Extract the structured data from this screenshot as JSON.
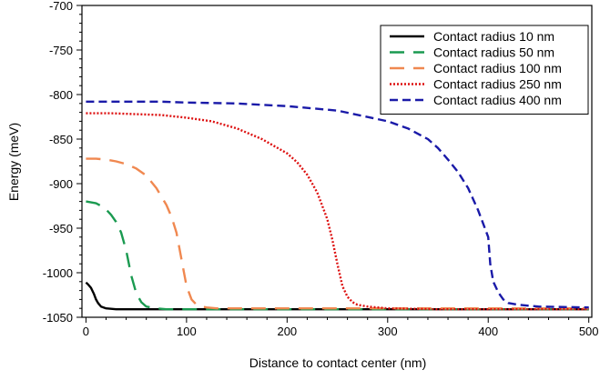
{
  "chart_data": {
    "type": "line",
    "title": "",
    "xlabel": "Distance to contact center (nm)",
    "ylabel": "Energy (meV)",
    "xlim": [
      -4,
      503
    ],
    "ylim": [
      -1050,
      -700
    ],
    "x_ticks": [
      0,
      100,
      200,
      300,
      400,
      500
    ],
    "y_ticks": [
      -700,
      -750,
      -800,
      -850,
      -900,
      -950,
      -1000,
      -1050
    ],
    "grid": false,
    "legend_position": "top-right",
    "series": [
      {
        "name": "Contact radius 10 nm",
        "color": "#000000",
        "dash": "solid",
        "x": [
          0,
          2,
          5,
          8,
          10,
          12,
          15,
          20,
          30,
          50,
          100,
          150,
          200,
          250,
          300,
          350,
          400,
          450,
          500
        ],
        "y": [
          -1011,
          -1013,
          -1017,
          -1024,
          -1030,
          -1034,
          -1038,
          -1040,
          -1041,
          -1041,
          -1041,
          -1041,
          -1041,
          -1041,
          -1041,
          -1041,
          -1041,
          -1041,
          -1041
        ]
      },
      {
        "name": "Contact radius 50 nm",
        "color": "#1a9a50",
        "dash": "long-dash",
        "x": [
          0,
          5,
          10,
          15,
          20,
          25,
          30,
          35,
          40,
          45,
          50,
          55,
          60,
          70,
          80,
          100,
          150,
          200,
          300,
          400,
          500
        ],
        "y": [
          -920,
          -921,
          -922,
          -925,
          -929,
          -935,
          -943,
          -955,
          -975,
          -1003,
          -1023,
          -1033,
          -1038,
          -1040,
          -1041,
          -1041,
          -1041,
          -1041,
          -1041,
          -1041,
          -1041
        ]
      },
      {
        "name": "Contact radius 100 nm",
        "color": "#f08850",
        "dash": "long-dash",
        "x": [
          0,
          10,
          20,
          30,
          40,
          50,
          60,
          70,
          80,
          85,
          90,
          95,
          100,
          105,
          110,
          115,
          120,
          130,
          150,
          200,
          300,
          400,
          500
        ],
        "y": [
          -872,
          -872,
          -873,
          -875,
          -878,
          -883,
          -891,
          -905,
          -924,
          -937,
          -955,
          -985,
          -1015,
          -1030,
          -1036,
          -1038,
          -1039,
          -1040,
          -1040,
          -1040,
          -1040,
          -1040,
          -1040
        ]
      },
      {
        "name": "Contact radius 250 nm",
        "color": "#dd1111",
        "dash": "dotted",
        "x": [
          0,
          25,
          50,
          75,
          100,
          125,
          150,
          175,
          200,
          210,
          220,
          230,
          240,
          245,
          250,
          255,
          260,
          265,
          270,
          280,
          300,
          350,
          400,
          450,
          500
        ],
        "y": [
          -821,
          -821,
          -822,
          -823,
          -826,
          -830,
          -838,
          -850,
          -866,
          -876,
          -890,
          -910,
          -940,
          -963,
          -990,
          -1015,
          -1027,
          -1033,
          -1036,
          -1038,
          -1040,
          -1041,
          -1041,
          -1041,
          -1041
        ]
      },
      {
        "name": "Contact radius 400 nm",
        "color": "#1a1aa8",
        "dash": "dashed",
        "x": [
          0,
          25,
          50,
          75,
          100,
          150,
          200,
          250,
          300,
          320,
          340,
          350,
          360,
          370,
          380,
          390,
          395,
          400,
          402,
          405,
          410,
          415,
          420,
          430,
          450,
          500
        ],
        "y": [
          -808,
          -808,
          -808,
          -808,
          -809,
          -810,
          -813,
          -818,
          -830,
          -838,
          -850,
          -860,
          -873,
          -887,
          -905,
          -930,
          -945,
          -960,
          -990,
          -1010,
          -1022,
          -1030,
          -1034,
          -1036,
          -1038,
          -1039
        ]
      }
    ]
  }
}
